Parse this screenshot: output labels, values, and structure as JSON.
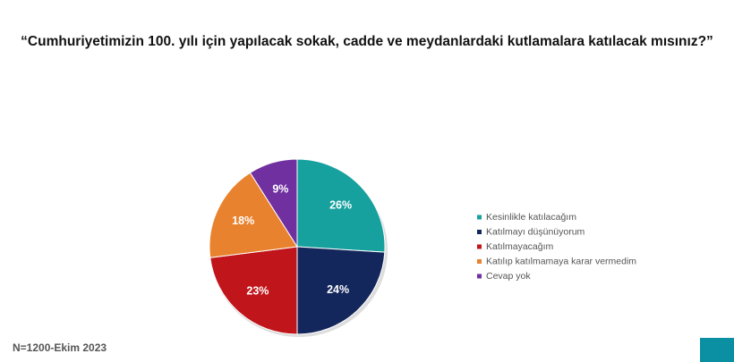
{
  "chart_data": {
    "type": "pie",
    "title": "“Cumhuriyetimizin 100. yılı için yapılacak sokak, cadde ve meydanlardaki kutlamalara katılacak mısınız?”",
    "categories": [
      "Kesinlikle katılacağım",
      "Katılmayı düşünüyorum",
      "Katılmayacağım",
      "Katılıp katılmamaya karar vermedim",
      "Cevap yok"
    ],
    "values": [
      26,
      24,
      23,
      18,
      9
    ],
    "value_labels": [
      "26%",
      "24%",
      "23%",
      "18%",
      "9%"
    ],
    "colors": [
      "#16a09e",
      "#14275c",
      "#c0151b",
      "#e8822e",
      "#7030a0"
    ],
    "legend": "right",
    "note": "N=1200-Ekim 2023"
  }
}
